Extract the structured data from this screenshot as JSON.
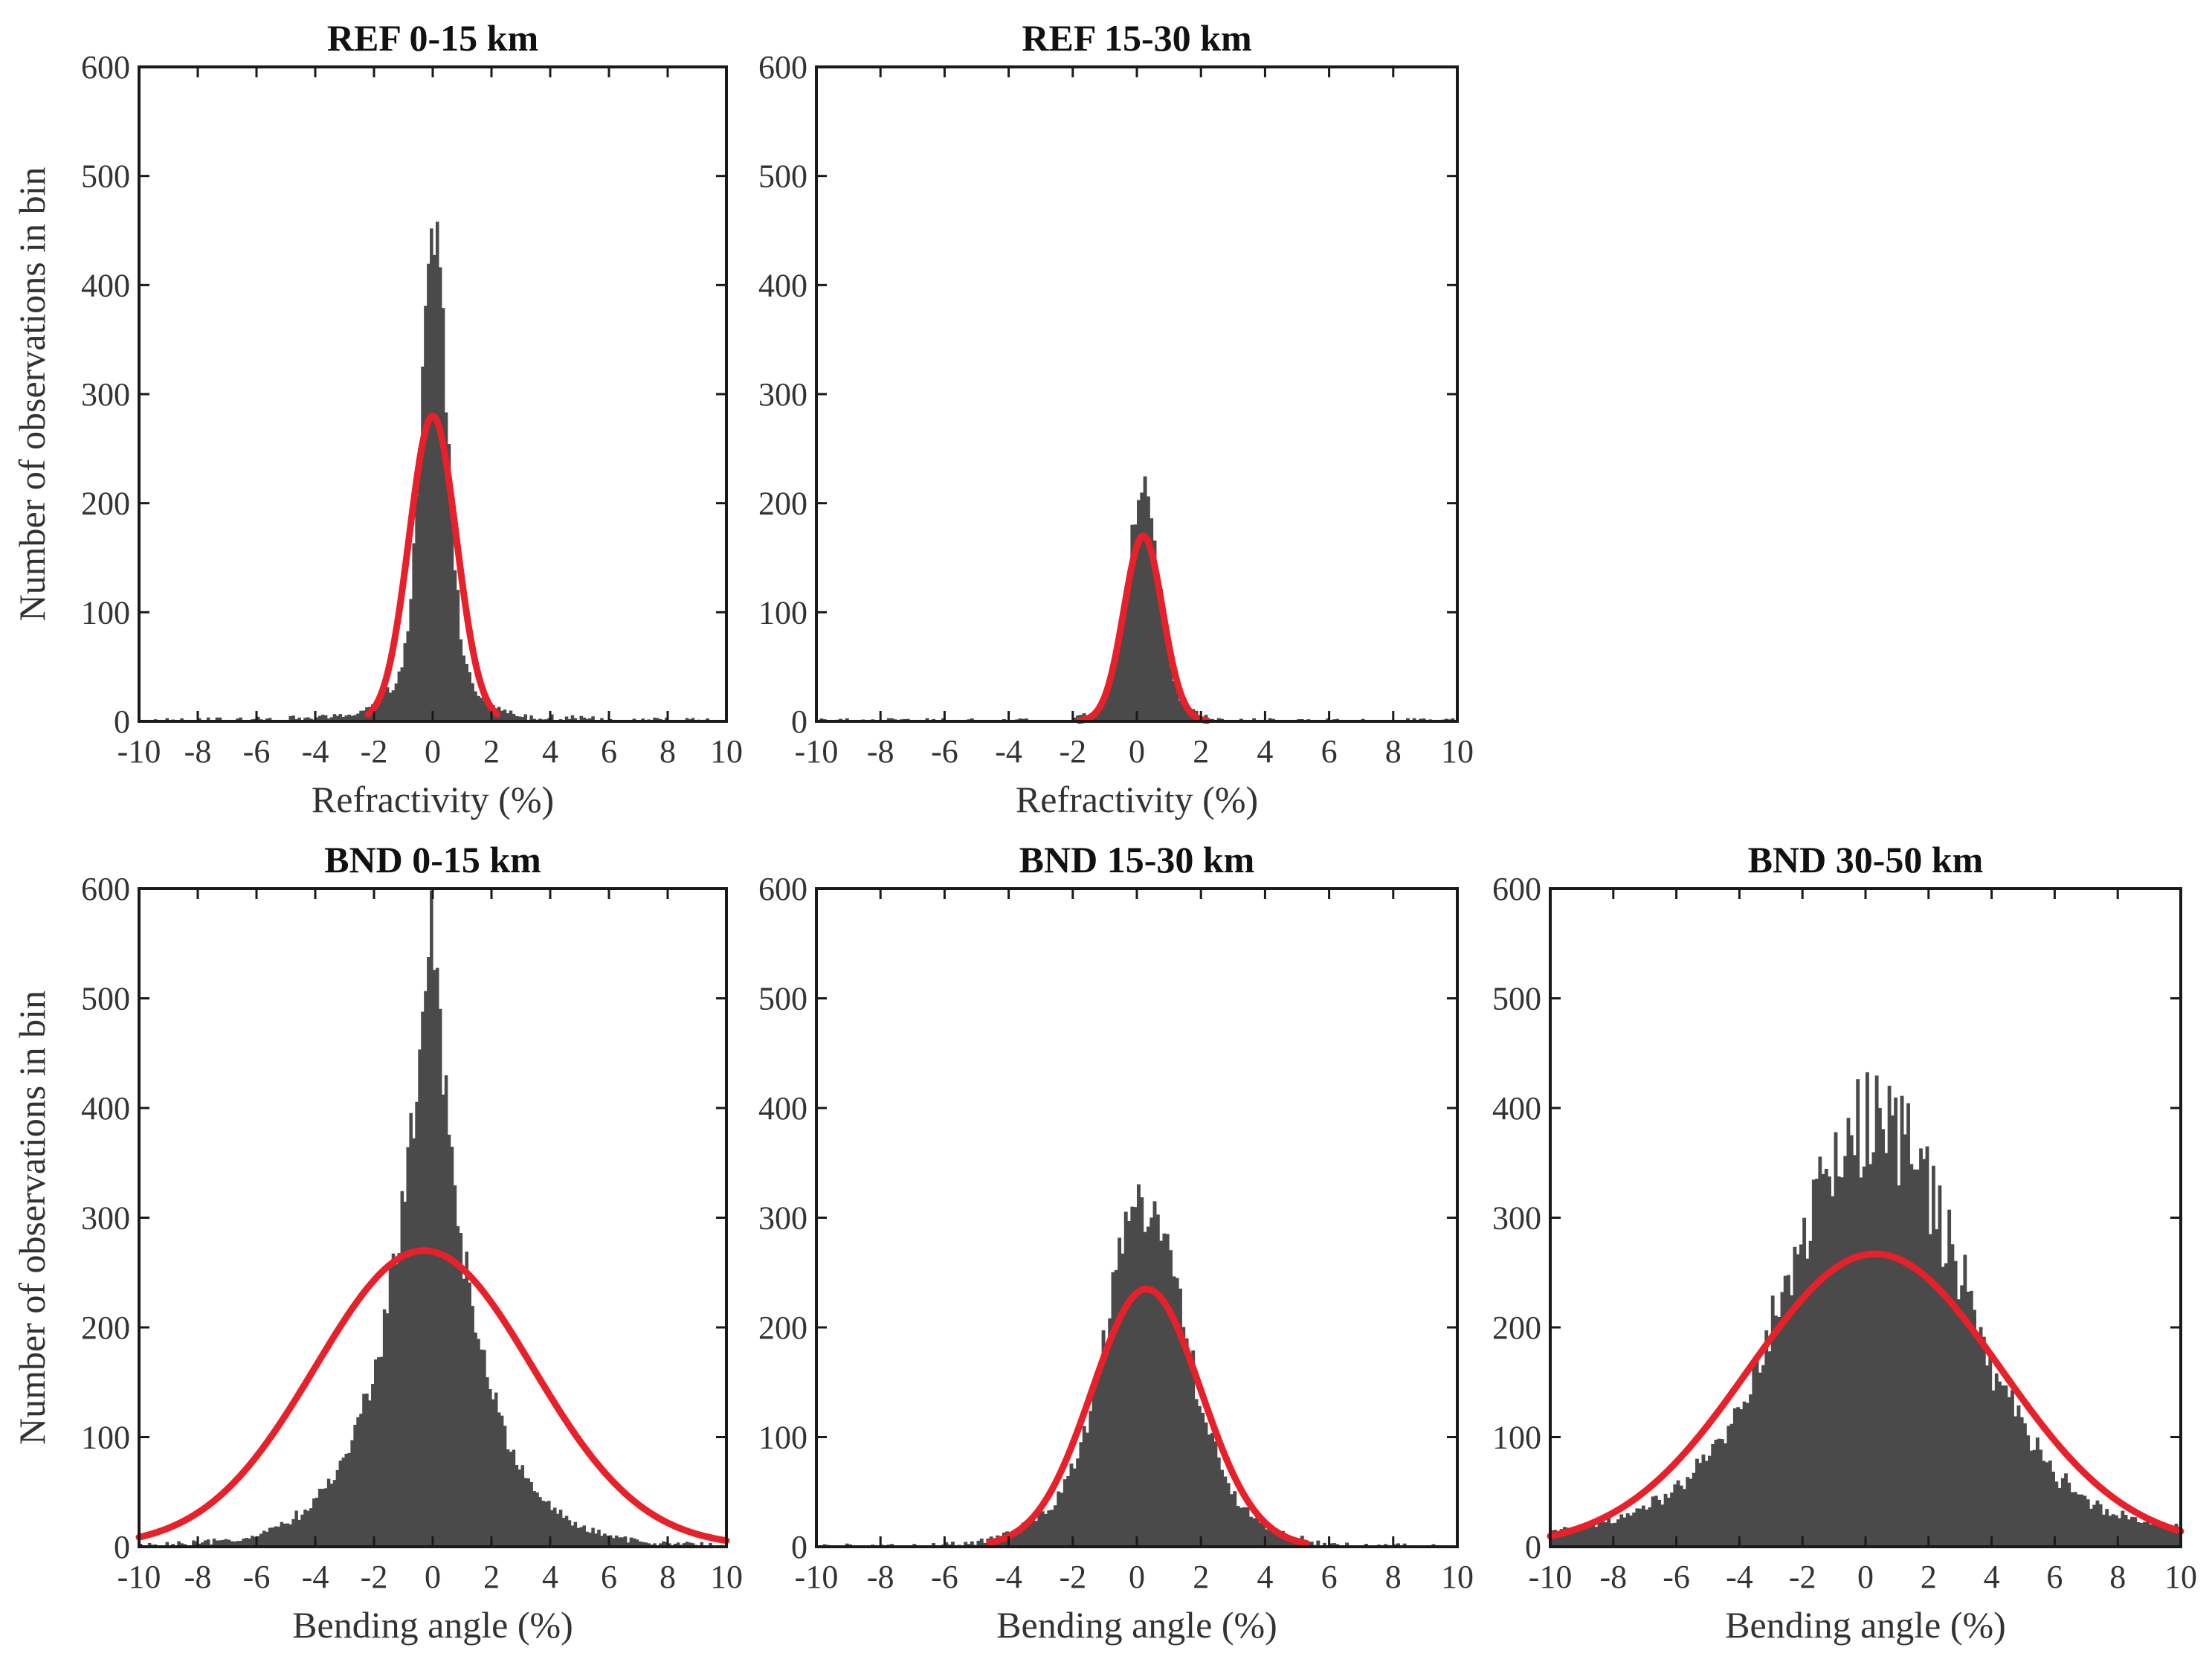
{
  "figure": {
    "ylabel": "Number of observations in bin"
  },
  "colors": {
    "histogram": "#4a4a4a",
    "fit": "#e8202a"
  },
  "chart_data": [
    {
      "id": "ref-0-15",
      "type": "bar",
      "title": "REF 0-15 km",
      "xlabel": "Refractivity (%)",
      "ylabel": "Number of observations in bin",
      "xlim": [
        -10,
        10
      ],
      "ylim": [
        0,
        600
      ],
      "xticks": [
        -10,
        -8,
        -6,
        -4,
        -2,
        0,
        2,
        4,
        6,
        8,
        10
      ],
      "yticks": [
        0,
        100,
        200,
        300,
        400,
        500,
        600
      ],
      "bin_width": 0.1,
      "histogram": {
        "type": "mixture",
        "components": [
          {
            "mean": 0.05,
            "sd": 0.42,
            "amp": 390
          },
          {
            "mean": 0.0,
            "sd": 1.1,
            "amp": 55
          },
          {
            "mean": 0.0,
            "sd": 3.5,
            "amp": 6
          }
        ],
        "noise": 0.06
      },
      "fit": {
        "type": "gaussian",
        "mean": 0.0,
        "sd": 0.8,
        "amp": 280,
        "xrange": [
          -2.2,
          2.2
        ]
      }
    },
    {
      "id": "ref-15-30",
      "type": "bar",
      "title": "REF 15-30 km",
      "xlabel": "Refractivity (%)",
      "ylabel": "",
      "xlim": [
        -10,
        10
      ],
      "ylim": [
        0,
        600
      ],
      "xticks": [
        -10,
        -8,
        -6,
        -4,
        -2,
        0,
        2,
        4,
        6,
        8,
        10
      ],
      "yticks": [
        0,
        100,
        200,
        300,
        400,
        500,
        600
      ],
      "bin_width": 0.1,
      "histogram": {
        "type": "mixture",
        "components": [
          {
            "mean": 0.2,
            "sd": 0.45,
            "amp": 180
          },
          {
            "mean": 0.2,
            "sd": 0.9,
            "amp": 35
          }
        ],
        "noise": 0.06
      },
      "fit": {
        "type": "gaussian",
        "mean": 0.2,
        "sd": 0.6,
        "amp": 170,
        "xrange": [
          -1.8,
          2.2
        ]
      }
    },
    {
      "id": "bnd-0-15",
      "type": "bar",
      "title": "BND 0-15 km",
      "xlabel": "Bending angle (%)",
      "ylabel": "Number of observations in bin",
      "xlim": [
        -10,
        10
      ],
      "ylim": [
        0,
        600
      ],
      "xticks": [
        -10,
        -8,
        -6,
        -4,
        -2,
        0,
        2,
        4,
        6,
        8,
        10
      ],
      "yticks": [
        0,
        100,
        200,
        300,
        400,
        500,
        600
      ],
      "bin_width": 0.1,
      "histogram": {
        "type": "laplace",
        "mean": -0.1,
        "scale": 1.5,
        "amp": 575,
        "noise": 0.06
      },
      "fit": {
        "type": "gaussian",
        "mean": -0.3,
        "sd": 3.7,
        "amp": 270,
        "xrange": [
          -10,
          10
        ]
      }
    },
    {
      "id": "bnd-15-30",
      "type": "bar",
      "title": "BND 15-30 km",
      "xlabel": "Bending angle (%)",
      "ylabel": "",
      "xlim": [
        -10,
        10
      ],
      "ylim": [
        0,
        600
      ],
      "xticks": [
        -10,
        -8,
        -6,
        -4,
        -2,
        0,
        2,
        4,
        6,
        8,
        10
      ],
      "yticks": [
        0,
        100,
        200,
        300,
        400,
        500,
        600
      ],
      "bin_width": 0.1,
      "histogram": {
        "type": "mixture",
        "components": [
          {
            "mean": 0.3,
            "sd": 1.1,
            "amp": 240
          },
          {
            "mean": 0.3,
            "sd": 2.2,
            "amp": 80
          }
        ],
        "noise": 0.07
      },
      "fit": {
        "type": "gaussian",
        "mean": 0.3,
        "sd": 1.7,
        "amp": 235,
        "xrange": [
          -4.6,
          5.3
        ]
      }
    },
    {
      "id": "bnd-30-50",
      "type": "bar",
      "title": "BND 30-50 km",
      "xlabel": "Bending angle (%)",
      "ylabel": "",
      "xlim": [
        -10,
        10
      ],
      "ylim": [
        0,
        600
      ],
      "xticks": [
        -10,
        -8,
        -6,
        -4,
        -2,
        0,
        2,
        4,
        6,
        8,
        10
      ],
      "yticks": [
        0,
        100,
        200,
        300,
        400,
        500,
        600
      ],
      "bin_width": 0.1,
      "histogram": {
        "type": "mixture",
        "components": [
          {
            "mean": 0.3,
            "sd": 2.6,
            "amp": 330
          },
          {
            "mean": 0.3,
            "sd": 6.0,
            "amp": 60
          }
        ],
        "noise": 0.08
      },
      "fit": {
        "type": "gaussian",
        "mean": 0.3,
        "sd": 4.0,
        "amp": 267,
        "xrange": [
          -10,
          10
        ]
      }
    }
  ]
}
